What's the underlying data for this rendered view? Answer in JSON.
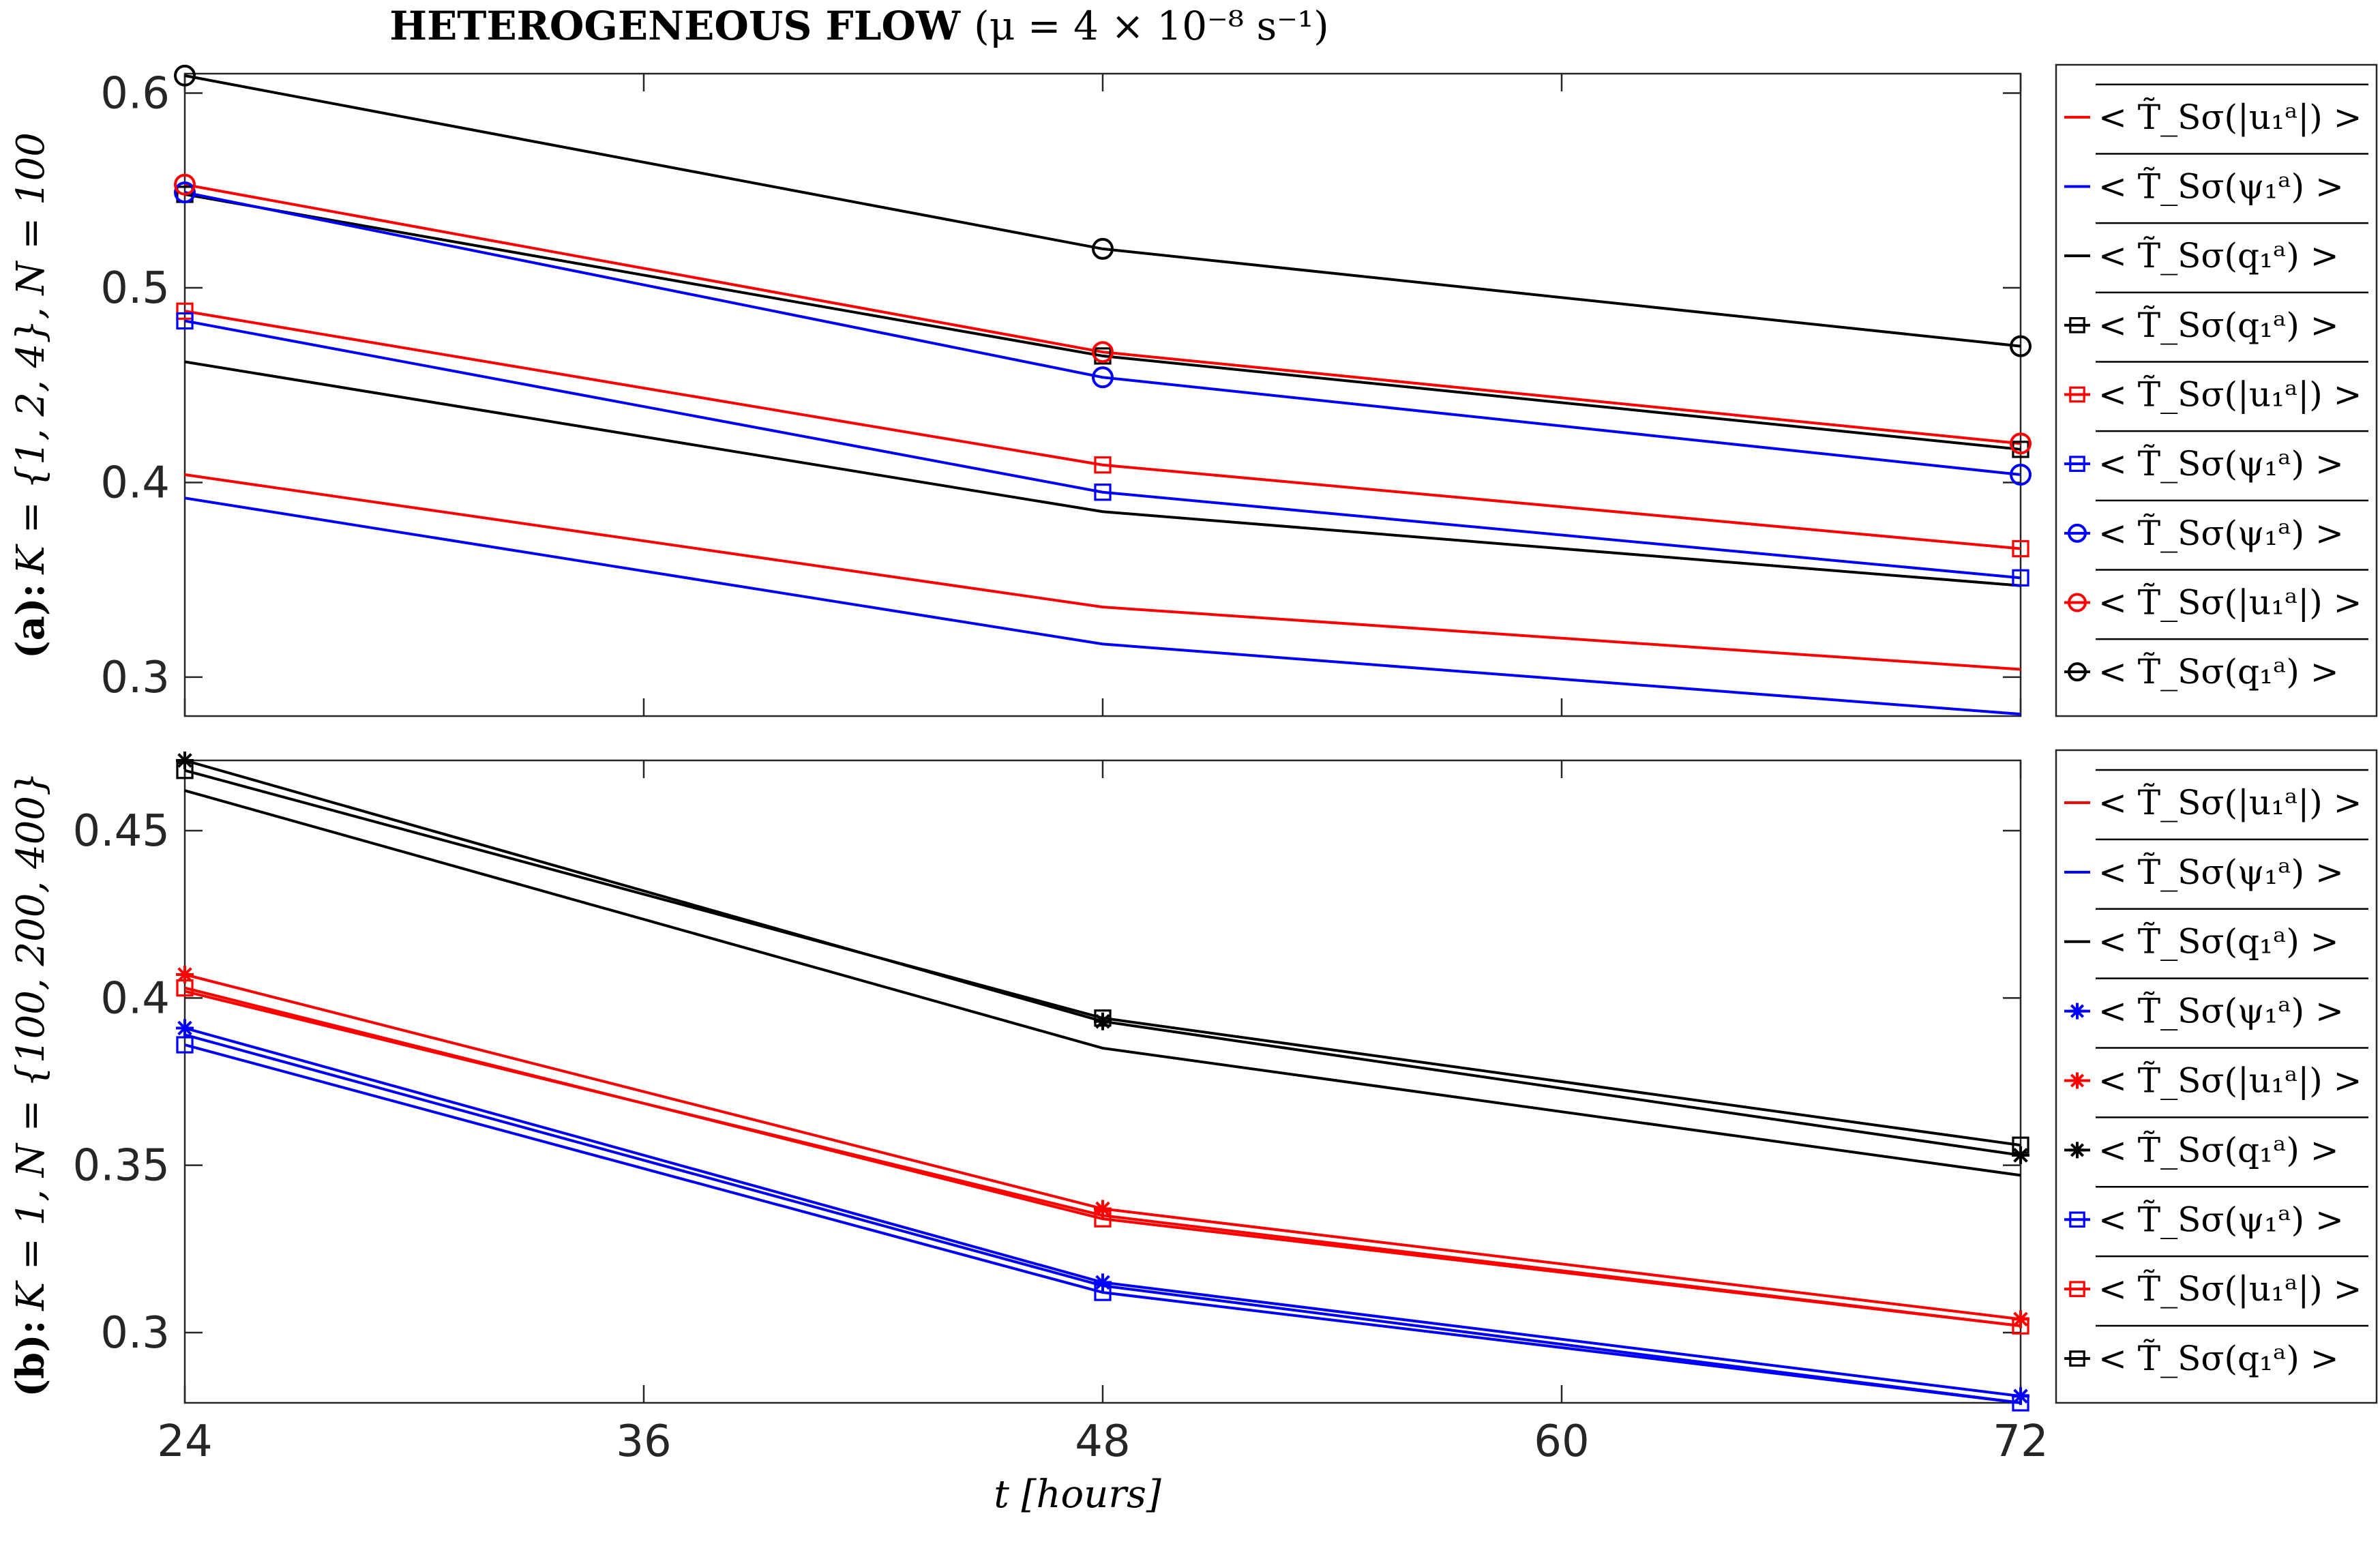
{
  "figure": {
    "title_bold": "HETEROGENEOUS FLOW",
    "title_params": "(μ = 4 × 10⁻⁸ s⁻¹)",
    "xlabel": "t [hours]",
    "x_ticks": [
      "24",
      "36",
      "48",
      "60",
      "72"
    ],
    "colors": {
      "red": "#ff0000",
      "blue": "#0000ff",
      "black": "#000000"
    }
  },
  "chart_data": [
    {
      "type": "line",
      "panel": "a",
      "ylabel_tag": "(a):",
      "ylabel": "K = {1, 2, 4}, N = 100",
      "xlim": [
        24,
        72
      ],
      "ylim": [
        0.28,
        0.61
      ],
      "y_ticks": [
        "0.3",
        "0.4",
        "0.5",
        "0.6"
      ],
      "x": [
        24,
        48,
        72
      ],
      "series": [
        {
          "name": "< T̃_Sσ(|u₁ᵃ|) >",
          "color": "red",
          "marker": "none",
          "values": [
            0.404,
            0.336,
            0.304
          ]
        },
        {
          "name": "< T̃_Sσ(ψ₁ᵃ) >",
          "color": "blue",
          "marker": "none",
          "values": [
            0.392,
            0.317,
            0.281
          ]
        },
        {
          "name": "< T̃_Sσ(q₁ᵃ) >",
          "color": "black",
          "marker": "none",
          "values": [
            0.462,
            0.385,
            0.347
          ]
        },
        {
          "name": "< T̃_Sσ(q₁ᵃ) >",
          "color": "black",
          "marker": "square",
          "values": [
            0.548,
            0.465,
            0.417
          ]
        },
        {
          "name": "< T̃_Sσ(|u₁ᵃ|) >",
          "color": "red",
          "marker": "square",
          "values": [
            0.488,
            0.409,
            0.366
          ]
        },
        {
          "name": "< T̃_Sσ(ψ₁ᵃ) >",
          "color": "blue",
          "marker": "square",
          "values": [
            0.483,
            0.395,
            0.351
          ]
        },
        {
          "name": "< T̃_Sσ(ψ₁ᵃ) >",
          "color": "blue",
          "marker": "circle",
          "values": [
            0.549,
            0.454,
            0.404
          ]
        },
        {
          "name": "< T̃_Sσ(|u₁ᵃ|) >",
          "color": "red",
          "marker": "circle",
          "values": [
            0.553,
            0.467,
            0.42
          ]
        },
        {
          "name": "< T̃_Sσ(q₁ᵃ) >",
          "color": "black",
          "marker": "circle",
          "values": [
            0.609,
            0.52,
            0.47
          ]
        }
      ]
    },
    {
      "type": "line",
      "panel": "b",
      "ylabel_tag": "(b):",
      "ylabel": "K = 1, N = {100, 200, 400}",
      "xlim": [
        24,
        72
      ],
      "ylim": [
        0.279,
        0.471
      ],
      "y_ticks": [
        "0.3",
        "0.35",
        "0.4",
        "0.45"
      ],
      "x": [
        24,
        48,
        72
      ],
      "series": [
        {
          "name": "< T̃_Sσ(|u₁ᵃ|) >",
          "color": "red",
          "marker": "none",
          "values": [
            0.402,
            0.335,
            0.302
          ]
        },
        {
          "name": "< T̃_Sσ(ψ₁ᵃ) >",
          "color": "blue",
          "marker": "none",
          "values": [
            0.389,
            0.314,
            0.279
          ]
        },
        {
          "name": "< T̃_Sσ(q₁ᵃ) >",
          "color": "black",
          "marker": "none",
          "values": [
            0.462,
            0.385,
            0.347
          ]
        },
        {
          "name": "< T̃_Sσ(ψ₁ᵃ) >",
          "color": "blue",
          "marker": "star",
          "values": [
            0.391,
            0.315,
            0.281
          ]
        },
        {
          "name": "< T̃_Sσ(|u₁ᵃ|) >",
          "color": "red",
          "marker": "star",
          "values": [
            0.407,
            0.337,
            0.304
          ]
        },
        {
          "name": "< T̃_Sσ(q₁ᵃ) >",
          "color": "black",
          "marker": "star",
          "values": [
            0.471,
            0.393,
            0.353
          ]
        },
        {
          "name": "< T̃_Sσ(ψ₁ᵃ) >",
          "color": "blue",
          "marker": "square",
          "values": [
            0.386,
            0.312,
            0.279
          ]
        },
        {
          "name": "< T̃_Sσ(|u₁ᵃ|) >",
          "color": "red",
          "marker": "square",
          "values": [
            0.403,
            0.334,
            0.302
          ]
        },
        {
          "name": "< T̃_Sσ(q₁ᵃ) >",
          "color": "black",
          "marker": "square",
          "values": [
            0.468,
            0.394,
            0.356
          ]
        }
      ]
    }
  ]
}
